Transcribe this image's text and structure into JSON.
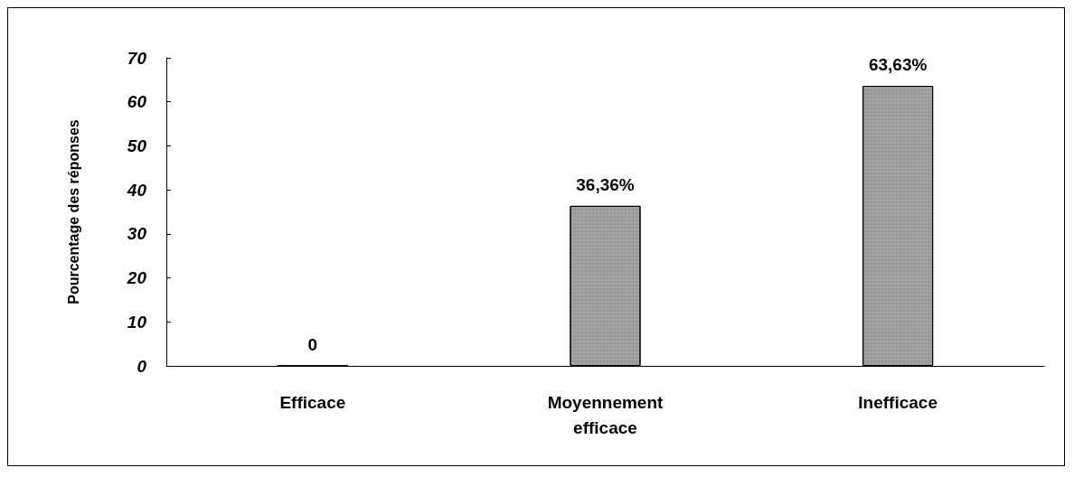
{
  "chart_data": {
    "type": "bar",
    "ylabel": "Pourcentage des réponses",
    "categories": [
      "Efficace",
      "Moyennement\nefficace",
      "Inefficace"
    ],
    "values": [
      0,
      36.36,
      63.63
    ],
    "value_labels": [
      "0",
      "36,36%",
      "63,63%"
    ],
    "color": "#9a9a9a",
    "ylim": [
      0,
      70
    ],
    "yticks": [
      0,
      10,
      20,
      30,
      40,
      50,
      60,
      70
    ],
    "grid": false
  }
}
